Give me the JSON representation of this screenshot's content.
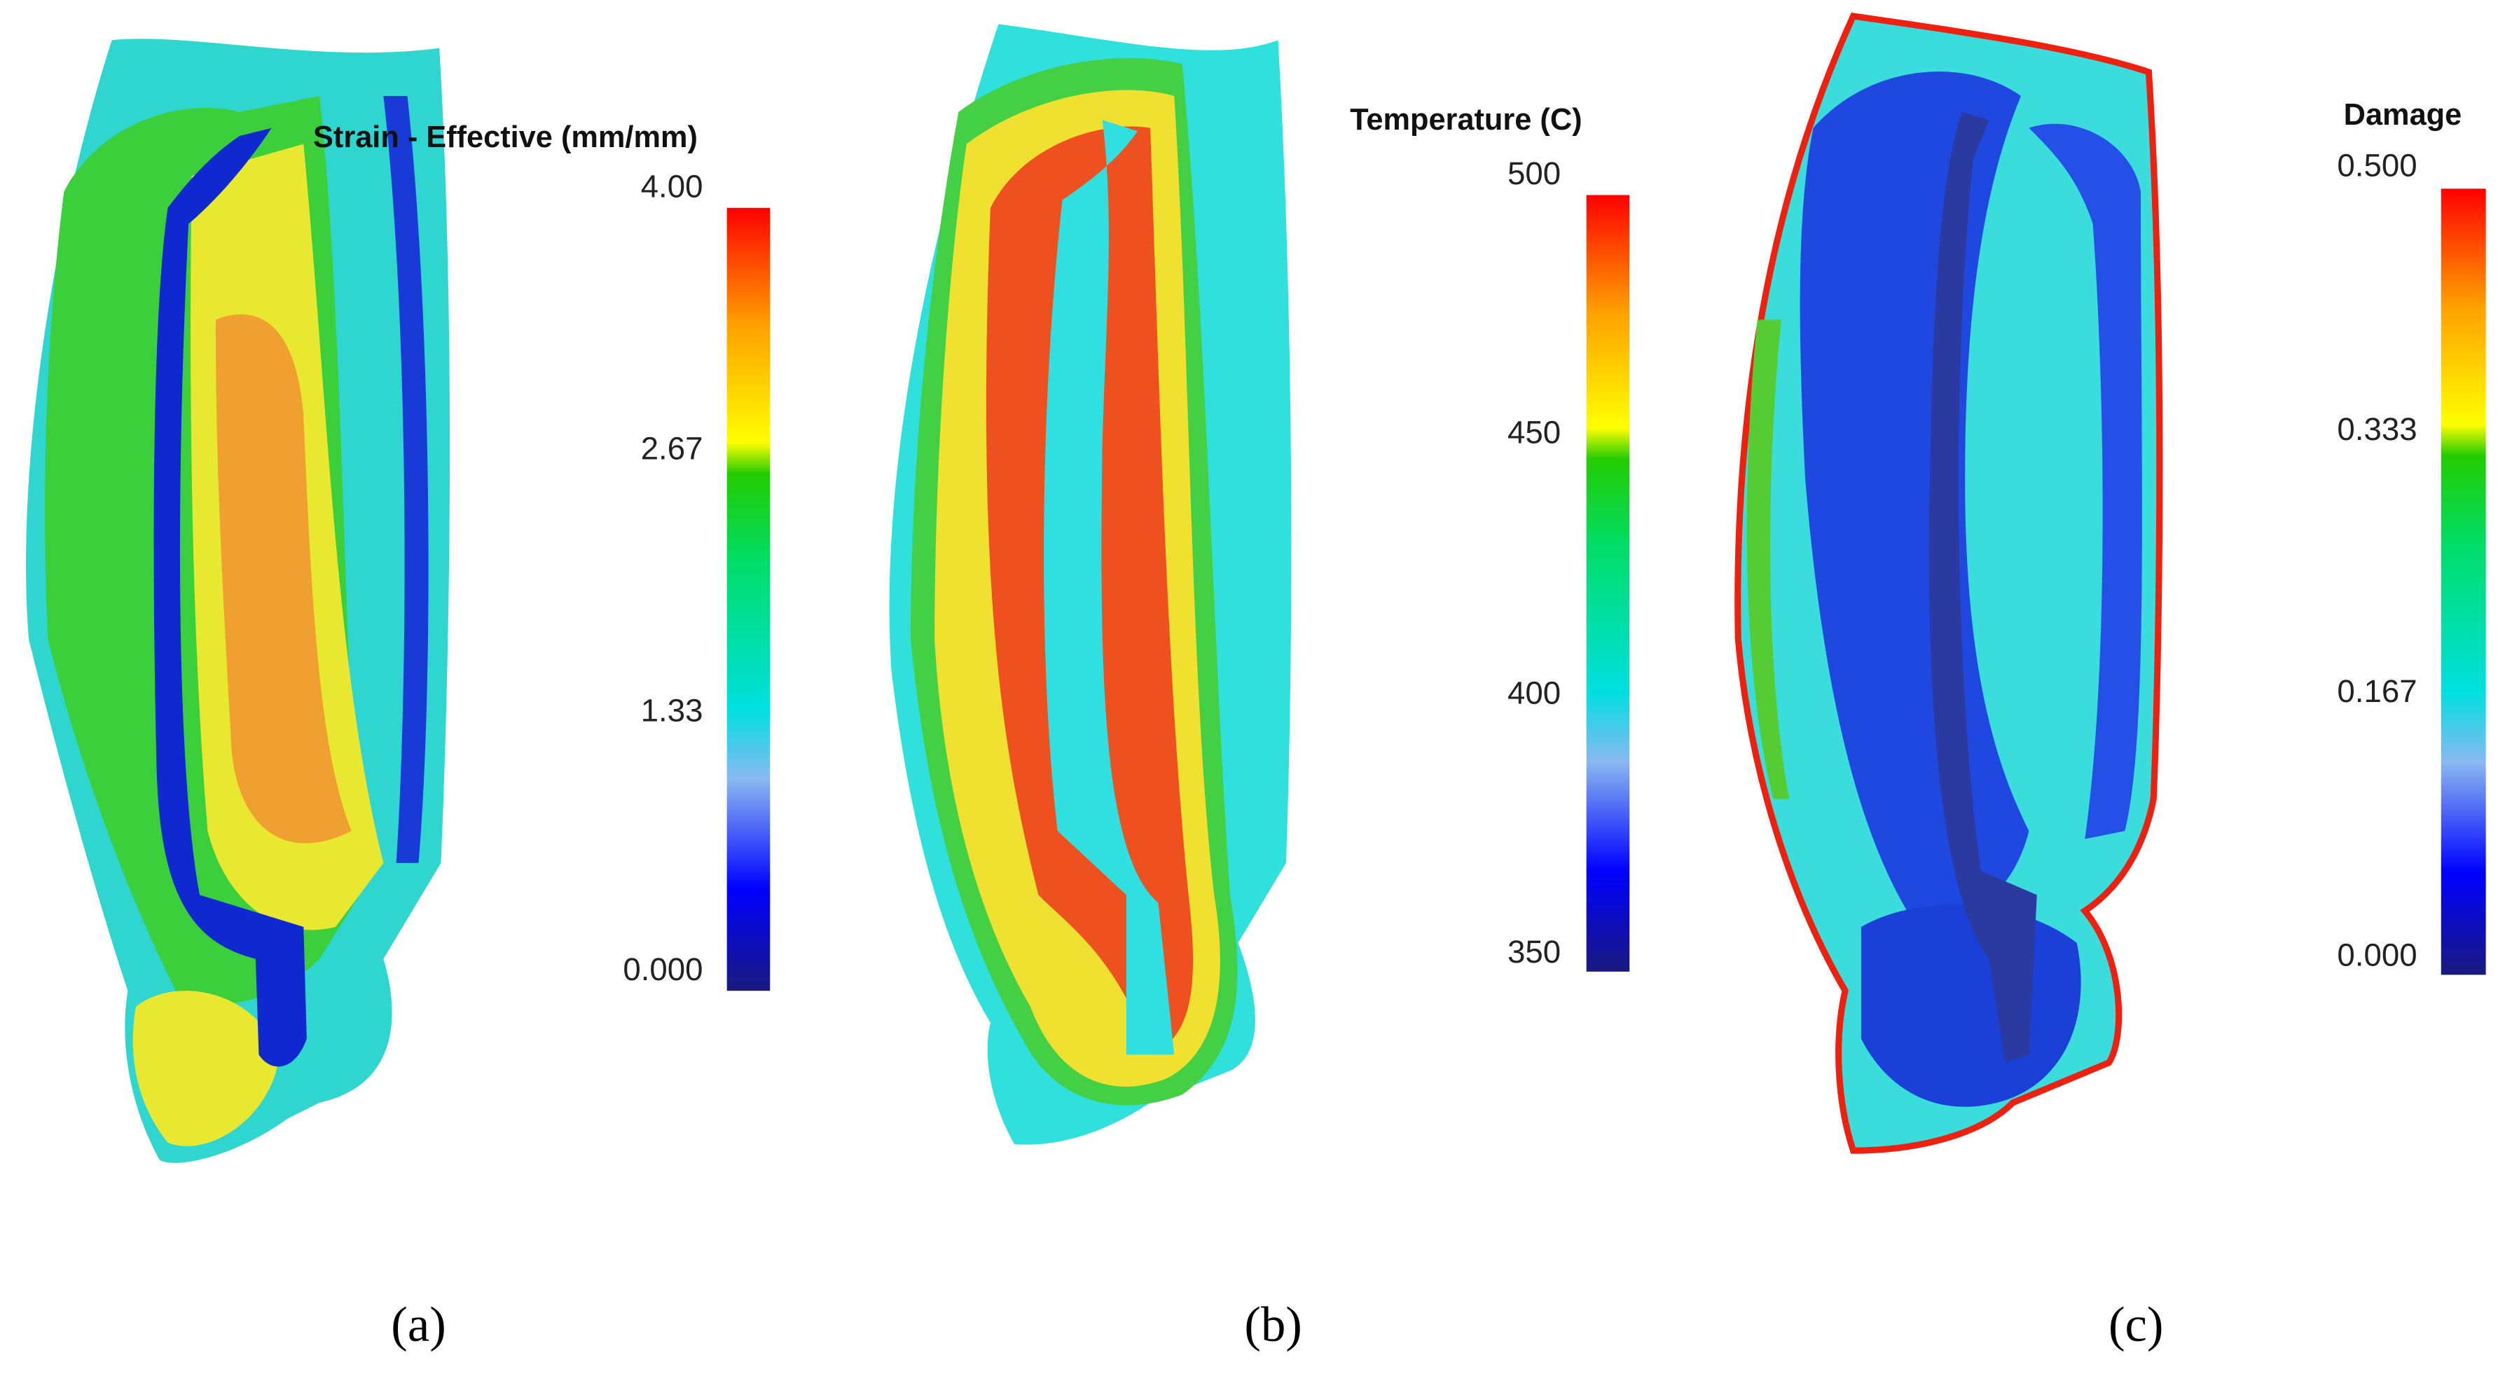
{
  "panels": [
    {
      "colorbar_title": "Strain - Effective (mm/mm)",
      "ticks": [
        "4.00",
        "2.67",
        "1.33",
        "0.000"
      ],
      "caption": "(a)"
    },
    {
      "colorbar_title": "Temperature (C)",
      "ticks": [
        "500",
        "450",
        "400",
        "350"
      ],
      "caption": "(b)"
    },
    {
      "colorbar_title": "Damage",
      "ticks": [
        "0.500",
        "0.333",
        "0.167",
        "0.000"
      ],
      "caption": "(c)"
    }
  ]
}
